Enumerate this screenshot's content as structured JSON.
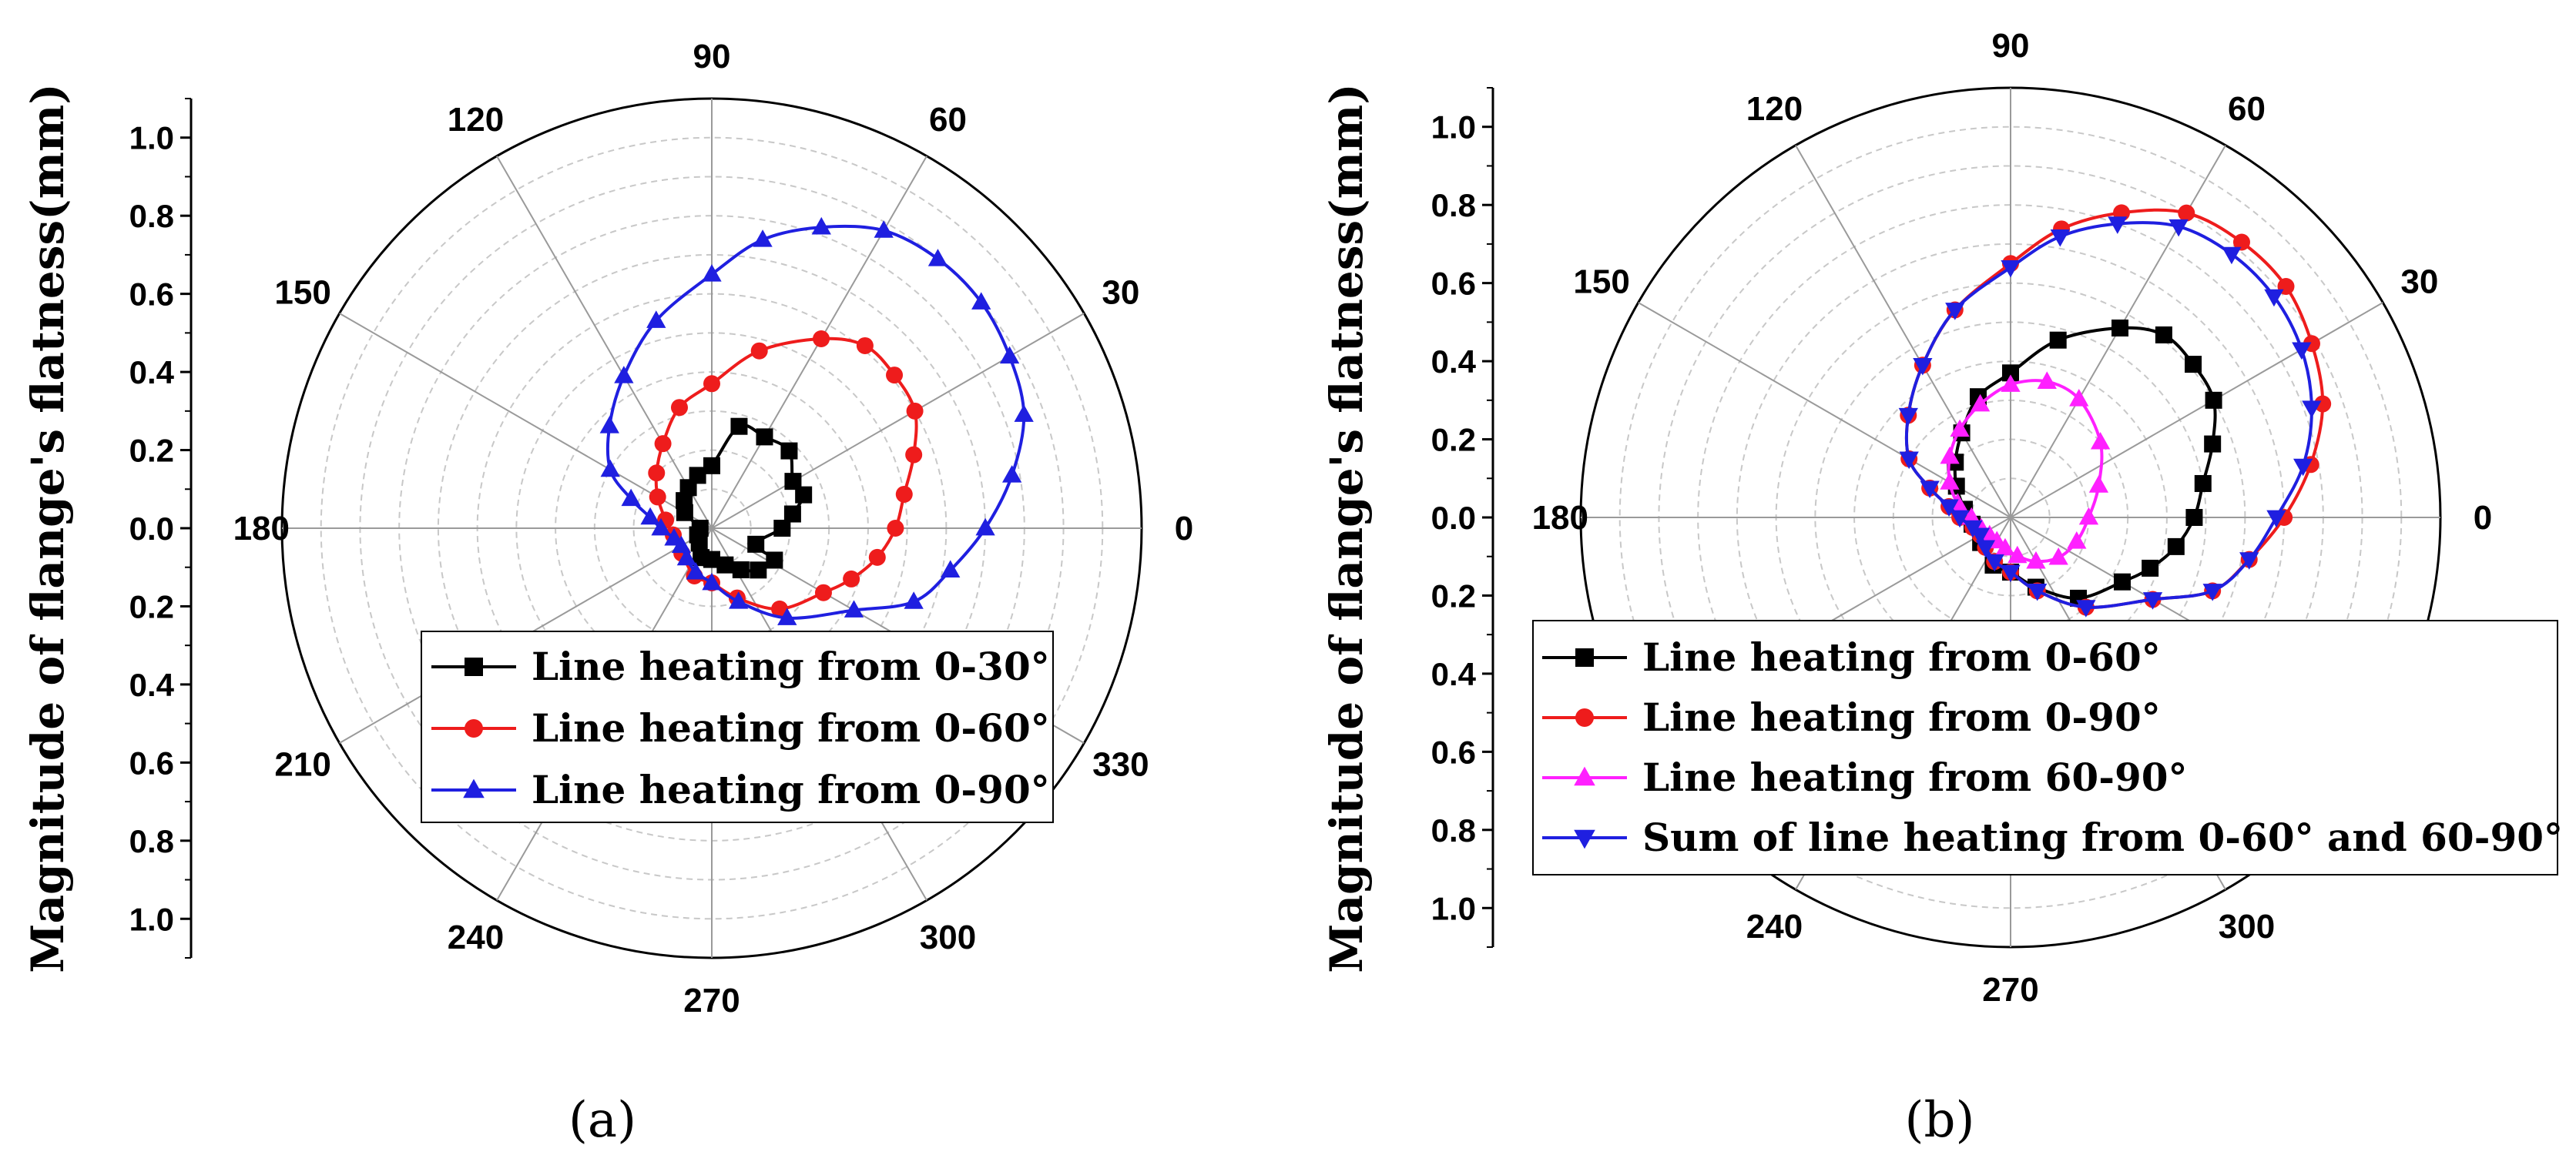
{
  "chart_data": [
    {
      "type": "polar-line",
      "panel": "a",
      "caption": "(a)",
      "ylabel": "Magnitude of flange's flatness(mm)",
      "r_range": [
        0,
        1.1
      ],
      "radial_ticks": [
        "1.0",
        "0.8",
        "0.6",
        "0.4",
        "0.2",
        "0.0",
        "0.2",
        "0.4",
        "0.6",
        "0.8",
        "1.0"
      ],
      "angle_labels": [
        "0",
        "30",
        "60",
        "90",
        "120",
        "150",
        "180",
        "210",
        "240",
        "270",
        "300",
        "330"
      ],
      "legend": [
        {
          "name": "Line heating from 0-30°",
          "color": "#000000",
          "marker": "square"
        },
        {
          "name": "Line heating from 0-60°",
          "color": "#ee1c1c",
          "marker": "circle"
        },
        {
          "name": "Line heating from 0-90°",
          "color": "#1f1fe0",
          "marker": "triangle-up"
        }
      ],
      "series": [
        {
          "name": "Line heating from 0-30°",
          "color": "#000000",
          "marker": "square",
          "points": [
            [
              -20,
              0.12
            ],
            [
              0,
              0.18
            ],
            [
              10,
              0.21
            ],
            [
              20,
              0.25
            ],
            [
              30,
              0.24
            ],
            [
              45,
              0.28
            ],
            [
              60,
              0.27
            ],
            [
              75,
              0.27
            ],
            [
              90,
              0.16
            ],
            [
              105,
              0.14
            ],
            [
              120,
              0.12
            ],
            [
              135,
              0.1
            ],
            [
              150,
              0.08
            ],
            [
              180,
              0.03
            ],
            [
              205,
              0.04
            ],
            [
              230,
              0.05
            ],
            [
              250,
              0.08
            ],
            [
              270,
              0.08
            ],
            [
              290,
              0.1
            ],
            [
              305,
              0.13
            ],
            [
              318,
              0.16
            ],
            [
              333,
              0.18
            ]
          ]
        },
        {
          "name": "Line heating from 0-60°",
          "color": "#ee1c1c",
          "marker": "circle",
          "points": [
            [
              -20,
              0.38
            ],
            [
              -10,
              0.43
            ],
            [
              0,
              0.47
            ],
            [
              10,
              0.5
            ],
            [
              20,
              0.55
            ],
            [
              30,
              0.6
            ],
            [
              40,
              0.61
            ],
            [
              50,
              0.61
            ],
            [
              60,
              0.56
            ],
            [
              75,
              0.47
            ],
            [
              90,
              0.37
            ],
            [
              105,
              0.32
            ],
            [
              120,
              0.25
            ],
            [
              135,
              0.2
            ],
            [
              150,
              0.16
            ],
            [
              170,
              0.12
            ],
            [
              190,
              0.1
            ],
            [
              220,
              0.1
            ],
            [
              250,
              0.13
            ],
            [
              270,
              0.14
            ],
            [
              290,
              0.19
            ],
            [
              310,
              0.27
            ],
            [
              330,
              0.33
            ]
          ]
        },
        {
          "name": "Line heating from 0-90°",
          "color": "#1f1fe0",
          "marker": "triangle-up",
          "points": [
            [
              -20,
              0.55
            ],
            [
              -10,
              0.62
            ],
            [
              0,
              0.7
            ],
            [
              10,
              0.78
            ],
            [
              20,
              0.85
            ],
            [
              30,
              0.88
            ],
            [
              40,
              0.9
            ],
            [
              50,
              0.9
            ],
            [
              60,
              0.88
            ],
            [
              70,
              0.82
            ],
            [
              80,
              0.75
            ],
            [
              90,
              0.65
            ],
            [
              105,
              0.55
            ],
            [
              120,
              0.45
            ],
            [
              135,
              0.37
            ],
            [
              150,
              0.3
            ],
            [
              160,
              0.22
            ],
            [
              170,
              0.16
            ],
            [
              180,
              0.13
            ],
            [
              195,
              0.1
            ],
            [
              210,
              0.09
            ],
            [
              230,
              0.1
            ],
            [
              250,
              0.12
            ],
            [
              270,
              0.14
            ],
            [
              290,
              0.2
            ],
            [
              310,
              0.3
            ],
            [
              330,
              0.42
            ]
          ]
        }
      ]
    },
    {
      "type": "polar-line",
      "panel": "b",
      "caption": "(b)",
      "ylabel": "Magnitude of flange's flatness(mm)",
      "r_range": [
        0,
        1.1
      ],
      "radial_ticks": [
        "1.0",
        "0.8",
        "0.6",
        "0.4",
        "0.2",
        "0.0",
        "0.2",
        "0.4",
        "0.6",
        "0.8",
        "1.0"
      ],
      "angle_labels": [
        "0",
        "30",
        "60",
        "90",
        "120",
        "150",
        "180",
        "210",
        "240",
        "270",
        "300",
        "330"
      ],
      "legend": [
        {
          "name": "Line heating from 0-60°",
          "color": "#000000",
          "marker": "square"
        },
        {
          "name": "Line heating from 0-90°",
          "color": "#ee1c1c",
          "marker": "circle"
        },
        {
          "name": "Line heating from 60-90°",
          "color": "#ff20ff",
          "marker": "triangle-up"
        },
        {
          "name": "Sum of line heating from 0-60° and 60-90°",
          "color": "#1f1fe0",
          "marker": "triangle-down"
        }
      ],
      "series": [
        {
          "name": "Line heating from 0-60°",
          "color": "#000000",
          "marker": "square",
          "points": [
            [
              -20,
              0.38
            ],
            [
              -10,
              0.43
            ],
            [
              0,
              0.47
            ],
            [
              10,
              0.5
            ],
            [
              20,
              0.55
            ],
            [
              30,
              0.6
            ],
            [
              40,
              0.61
            ],
            [
              50,
              0.61
            ],
            [
              60,
              0.56
            ],
            [
              75,
              0.47
            ],
            [
              90,
              0.37
            ],
            [
              105,
              0.32
            ],
            [
              120,
              0.25
            ],
            [
              135,
              0.2
            ],
            [
              150,
              0.16
            ],
            [
              170,
              0.12
            ],
            [
              190,
              0.1
            ],
            [
              220,
              0.1
            ],
            [
              250,
              0.13
            ],
            [
              270,
              0.14
            ],
            [
              290,
              0.19
            ],
            [
              310,
              0.27
            ],
            [
              330,
              0.33
            ]
          ]
        },
        {
          "name": "Line heating from 0-90°",
          "color": "#ee1c1c",
          "marker": "circle",
          "points": [
            [
              -20,
              0.55
            ],
            [
              -10,
              0.62
            ],
            [
              0,
              0.7
            ],
            [
              10,
              0.78
            ],
            [
              20,
              0.85
            ],
            [
              30,
              0.89
            ],
            [
              40,
              0.92
            ],
            [
              50,
              0.92
            ],
            [
              60,
              0.9
            ],
            [
              70,
              0.83
            ],
            [
              80,
              0.75
            ],
            [
              90,
              0.65
            ],
            [
              105,
              0.55
            ],
            [
              120,
              0.45
            ],
            [
              135,
              0.37
            ],
            [
              150,
              0.3
            ],
            [
              160,
              0.22
            ],
            [
              170,
              0.16
            ],
            [
              180,
              0.13
            ],
            [
              195,
              0.1
            ],
            [
              210,
              0.09
            ],
            [
              230,
              0.1
            ],
            [
              250,
              0.12
            ],
            [
              270,
              0.14
            ],
            [
              290,
              0.2
            ],
            [
              310,
              0.3
            ],
            [
              330,
              0.42
            ]
          ]
        },
        {
          "name": "Line heating from 60-90°",
          "color": "#ff20ff",
          "marker": "triangle-up",
          "points": [
            [
              0,
              0.2
            ],
            [
              20,
              0.24
            ],
            [
              40,
              0.3
            ],
            [
              60,
              0.35
            ],
            [
              75,
              0.36
            ],
            [
              90,
              0.34
            ],
            [
              105,
              0.3
            ],
            [
              120,
              0.26
            ],
            [
              135,
              0.22
            ],
            [
              150,
              0.18
            ],
            [
              165,
              0.14
            ],
            [
              180,
              0.1
            ],
            [
              200,
              0.08
            ],
            [
              220,
              0.07
            ],
            [
              240,
              0.07
            ],
            [
              260,
              0.08
            ],
            [
              280,
              0.1
            ],
            [
              300,
              0.13
            ],
            [
              320,
              0.16
            ],
            [
              340,
              0.18
            ]
          ]
        },
        {
          "name": "Sum of line heating from 0-60° and 60-90°",
          "color": "#1f1fe0",
          "marker": "triangle-down",
          "points": [
            [
              -20,
              0.55
            ],
            [
              -10,
              0.62
            ],
            [
              0,
              0.68
            ],
            [
              10,
              0.76
            ],
            [
              20,
              0.82
            ],
            [
              30,
              0.86
            ],
            [
              40,
              0.88
            ],
            [
              50,
              0.88
            ],
            [
              60,
              0.86
            ],
            [
              70,
              0.8
            ],
            [
              80,
              0.73
            ],
            [
              90,
              0.64
            ],
            [
              105,
              0.55
            ],
            [
              120,
              0.45
            ],
            [
              135,
              0.37
            ],
            [
              150,
              0.3
            ],
            [
              160,
              0.22
            ],
            [
              170,
              0.16
            ],
            [
              180,
              0.13
            ],
            [
              195,
              0.1
            ],
            [
              210,
              0.09
            ],
            [
              230,
              0.1
            ],
            [
              250,
              0.12
            ],
            [
              270,
              0.14
            ],
            [
              290,
              0.2
            ],
            [
              310,
              0.3
            ],
            [
              330,
              0.42
            ]
          ]
        }
      ]
    }
  ]
}
